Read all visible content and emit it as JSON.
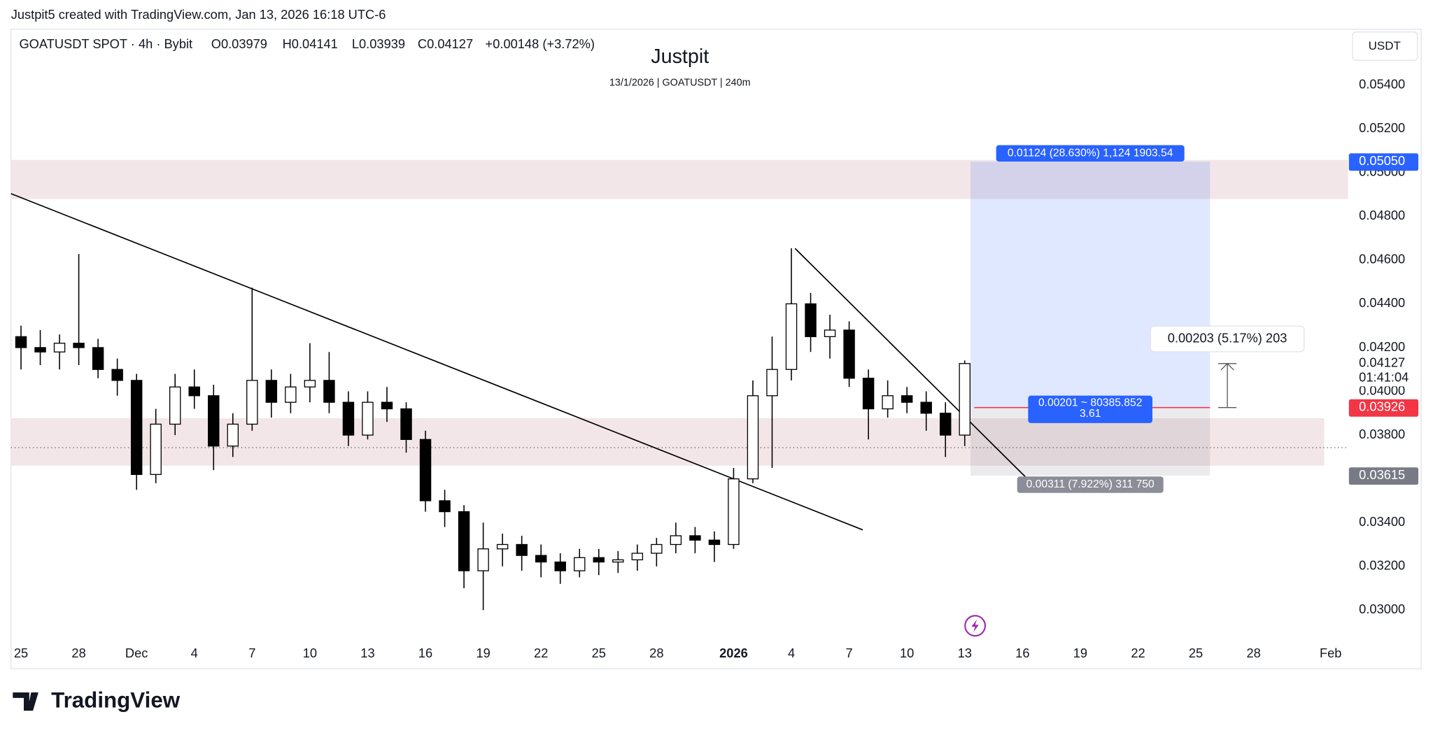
{
  "header": "Justpit5 created with TradingView.com, Jan 13, 2026 16:18 UTC-6",
  "legend": {
    "symbol": "GOATUSDT SPOT · 4h · Bybit",
    "open": "O0.03979",
    "high": "H0.04141",
    "low": "L0.03939",
    "close": "C0.04127",
    "change": "+0.00148 (+3.72%)"
  },
  "currency": "USDT",
  "footer": "TradingView",
  "chart_data": {
    "type": "candlestick",
    "title": "Justpit",
    "subtitle": "13/1/2026 | GOATUSDT | 240m",
    "x": [
      0,
      1,
      2,
      3,
      4,
      5,
      6,
      7,
      8,
      9,
      10,
      11,
      12,
      13,
      14,
      15,
      16,
      17,
      18,
      19,
      20,
      21,
      22,
      23,
      24,
      25,
      26,
      27,
      28,
      29,
      30,
      31,
      32,
      33,
      34,
      35,
      36,
      37,
      38,
      39,
      40,
      41,
      42,
      43,
      44,
      45,
      46,
      47,
      48,
      49
    ],
    "open": [
      0.0425,
      0.042,
      0.0418,
      0.0422,
      0.042,
      0.041,
      0.0405,
      0.0362,
      0.0385,
      0.0402,
      0.0398,
      0.0375,
      0.0385,
      0.0405,
      0.0395,
      0.0402,
      0.0405,
      0.0395,
      0.038,
      0.0395,
      0.0392,
      0.0378,
      0.035,
      0.0345,
      0.0318,
      0.0328,
      0.033,
      0.0325,
      0.0322,
      0.0318,
      0.0324,
      0.0322,
      0.0323,
      0.0326,
      0.033,
      0.0334,
      0.0332,
      0.033,
      0.036,
      0.0398,
      0.041,
      0.044,
      0.0425,
      0.0428,
      0.0406,
      0.0392,
      0.0398,
      0.0395,
      0.039,
      0.038
    ],
    "high": [
      0.043,
      0.0428,
      0.0426,
      0.04628,
      0.0424,
      0.0415,
      0.0408,
      0.0392,
      0.0408,
      0.041,
      0.0403,
      0.039,
      0.04474,
      0.041,
      0.0408,
      0.0422,
      0.0418,
      0.04,
      0.04,
      0.0402,
      0.0395,
      0.0382,
      0.0355,
      0.0348,
      0.034,
      0.0335,
      0.0334,
      0.033,
      0.0326,
      0.0328,
      0.0328,
      0.0327,
      0.033,
      0.0333,
      0.034,
      0.0338,
      0.0336,
      0.0365,
      0.0405,
      0.0425,
      0.04654,
      0.0445,
      0.0435,
      0.0432,
      0.041,
      0.0405,
      0.0402,
      0.04,
      0.0395,
      0.04141
    ],
    "low": [
      0.041,
      0.0412,
      0.041,
      0.0412,
      0.0406,
      0.0398,
      0.0355,
      0.0358,
      0.038,
      0.0392,
      0.0364,
      0.037,
      0.0382,
      0.0388,
      0.039,
      0.0395,
      0.039,
      0.0375,
      0.0378,
      0.0386,
      0.0372,
      0.0345,
      0.0338,
      0.031,
      0.03,
      0.032,
      0.0318,
      0.0315,
      0.0312,
      0.0315,
      0.0316,
      0.0317,
      0.0318,
      0.032,
      0.0326,
      0.0326,
      0.0322,
      0.0328,
      0.0358,
      0.0365,
      0.0405,
      0.0418,
      0.0415,
      0.0402,
      0.0378,
      0.0388,
      0.039,
      0.0382,
      0.037,
      0.0375
    ],
    "close": [
      0.042,
      0.0418,
      0.0422,
      0.042,
      0.041,
      0.0405,
      0.0362,
      0.0385,
      0.0402,
      0.0398,
      0.0375,
      0.0385,
      0.0405,
      0.0395,
      0.0402,
      0.0405,
      0.0395,
      0.038,
      0.0395,
      0.0392,
      0.0378,
      0.035,
      0.0345,
      0.0318,
      0.0328,
      0.033,
      0.0325,
      0.0322,
      0.0318,
      0.0324,
      0.0322,
      0.0323,
      0.0326,
      0.033,
      0.0334,
      0.0332,
      0.033,
      0.036,
      0.0398,
      0.041,
      0.044,
      0.0425,
      0.0428,
      0.0406,
      0.0392,
      0.0398,
      0.0395,
      0.039,
      0.038,
      0.04127
    ],
    "up_color": "#ffffff",
    "down_color": "#000000",
    "xlim": [
      -0.52,
      68.9
    ],
    "ylim": [
      0.02866,
      0.05655
    ],
    "xticks": [
      {
        "value": 0,
        "label": "25"
      },
      {
        "value": 3,
        "label": "28"
      },
      {
        "value": 6,
        "label": "Dec"
      },
      {
        "value": 9,
        "label": "4"
      },
      {
        "value": 12,
        "label": "7"
      },
      {
        "value": 15,
        "label": "10"
      },
      {
        "value": 18,
        "label": "13"
      },
      {
        "value": 21,
        "label": "16"
      },
      {
        "value": 24,
        "label": "19"
      },
      {
        "value": 27,
        "label": "22"
      },
      {
        "value": 30,
        "label": "25"
      },
      {
        "value": 33,
        "label": "28"
      },
      {
        "value": 37,
        "label": "2026"
      },
      {
        "value": 40,
        "label": "4"
      },
      {
        "value": 43,
        "label": "7"
      },
      {
        "value": 46,
        "label": "10"
      },
      {
        "value": 49,
        "label": "13"
      },
      {
        "value": 52,
        "label": "16"
      },
      {
        "value": 55,
        "label": "19"
      },
      {
        "value": 58,
        "label": "22"
      },
      {
        "value": 61,
        "label": "25"
      },
      {
        "value": 64,
        "label": "28"
      },
      {
        "value": 68,
        "label": "Feb"
      }
    ],
    "yticks": [
      {
        "value": 0.03,
        "label": "0.03000"
      },
      {
        "value": 0.032,
        "label": "0.03200"
      },
      {
        "value": 0.034,
        "label": "0.03400"
      },
      {
        "value": 0.036,
        "label": "0.03600"
      },
      {
        "value": 0.038,
        "label": "0.03800"
      },
      {
        "value": 0.04,
        "label": "0.04000"
      },
      {
        "value": 0.042,
        "label": "0.04200"
      },
      {
        "value": 0.044,
        "label": "0.04400"
      },
      {
        "value": 0.046,
        "label": "0.04600"
      },
      {
        "value": 0.048,
        "label": "0.04800"
      },
      {
        "value": 0.05,
        "label": "0.05000"
      },
      {
        "value": 0.052,
        "label": "0.05200"
      },
      {
        "value": 0.054,
        "label": "0.05400"
      }
    ],
    "zones": [
      [
        0.04879,
        0.05058
      ],
      [
        0.0366,
        0.03877
      ]
    ],
    "zone_color": "#f3e6e8",
    "last_price": {
      "value": 0.04127,
      "label": "0.04127"
    },
    "countdown": "01:41:04",
    "position": {
      "target": {
        "value": 0.0505,
        "label": "0.05050"
      },
      "entry": {
        "value": 0.03926,
        "label": "0.03926"
      },
      "stop": {
        "value": 0.03615,
        "label": "0.03615"
      },
      "target_text": "0.01124 (28.630%) 1,124 1903.54",
      "entry_text": "0.00201 ~ 80385.852",
      "ratio_text": "3.61",
      "stop_text": "0.00311 (7.922%) 311 750"
    },
    "measure_text": "0.00203 (5.17%) 203"
  }
}
